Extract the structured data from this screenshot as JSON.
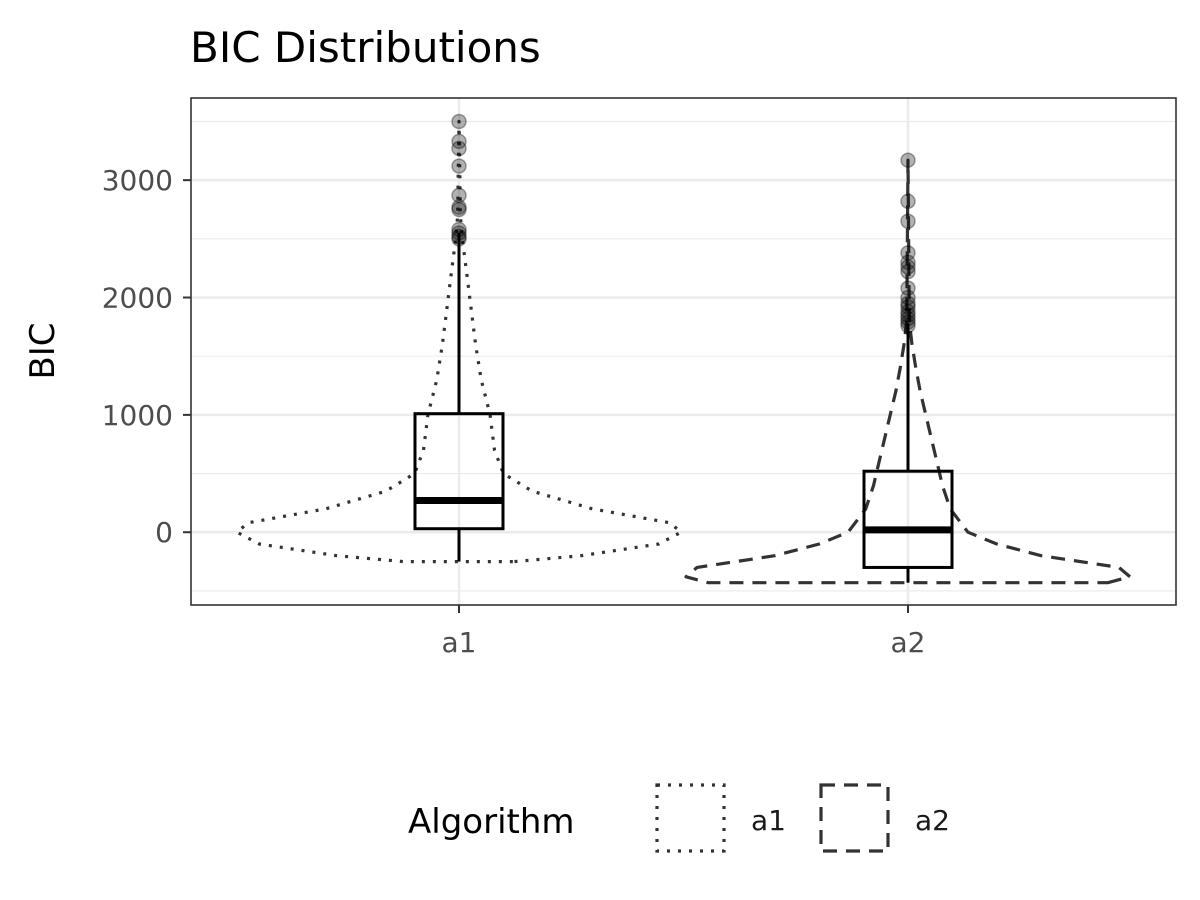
{
  "chart_data": {
    "type": "violin",
    "title": "BIC Distributions",
    "xlabel": "",
    "ylabel": "BIC",
    "ylim": [
      -620,
      3700
    ],
    "y_ticks": [
      0,
      1000,
      2000,
      3000
    ],
    "y_tick_labels": [
      "0",
      "1000",
      "2000",
      "3000"
    ],
    "categories": [
      "a1",
      "a2"
    ],
    "grid": true,
    "legend": {
      "title": "Algorithm",
      "position": "bottom",
      "entries": [
        {
          "label": "a1",
          "linetype": "dotted"
        },
        {
          "label": "a2",
          "linetype": "dashed"
        }
      ]
    },
    "series": [
      {
        "name": "a1",
        "linetype": "dotted",
        "violin_profile": [
          [
            -250,
            0.25
          ],
          [
            -200,
            0.55
          ],
          [
            -100,
            0.9
          ],
          [
            0,
            1.0
          ],
          [
            80,
            0.95
          ],
          [
            200,
            0.6
          ],
          [
            350,
            0.33
          ],
          [
            500,
            0.2
          ],
          [
            700,
            0.16
          ],
          [
            1000,
            0.14
          ],
          [
            1300,
            0.1
          ],
          [
            1600,
            0.075
          ],
          [
            1900,
            0.055
          ],
          [
            2200,
            0.035
          ],
          [
            2500,
            0.015
          ],
          [
            2700,
            0.006
          ],
          [
            3000,
            0.004
          ],
          [
            3500,
            0.0
          ]
        ],
        "box": {
          "min": -250,
          "q1": 30,
          "median": 270,
          "q3": 1010,
          "max": 2550
        },
        "outliers": [
          2500,
          2520,
          2550,
          2580,
          2750,
          2770,
          2870,
          3120,
          3270,
          3330,
          3500
        ]
      },
      {
        "name": "a2",
        "linetype": "dashed",
        "violin_profile": [
          [
            -430,
            0.9
          ],
          [
            -380,
            1.0
          ],
          [
            -300,
            0.95
          ],
          [
            -200,
            0.6
          ],
          [
            -100,
            0.4
          ],
          [
            0,
            0.27
          ],
          [
            200,
            0.19
          ],
          [
            400,
            0.155
          ],
          [
            600,
            0.13
          ],
          [
            800,
            0.105
          ],
          [
            1000,
            0.08
          ],
          [
            1200,
            0.055
          ],
          [
            1400,
            0.035
          ],
          [
            1600,
            0.018
          ],
          [
            1800,
            0.006
          ],
          [
            2200,
            0.004
          ],
          [
            3170,
            0.0
          ]
        ],
        "box": {
          "min": -430,
          "q1": -300,
          "median": 20,
          "q3": 520,
          "max": 1780
        },
        "outliers": [
          1760,
          1790,
          1820,
          1850,
          1880,
          1920,
          1950,
          2000,
          2080,
          2220,
          2260,
          2300,
          2380,
          2650,
          2820,
          3170
        ]
      }
    ]
  }
}
